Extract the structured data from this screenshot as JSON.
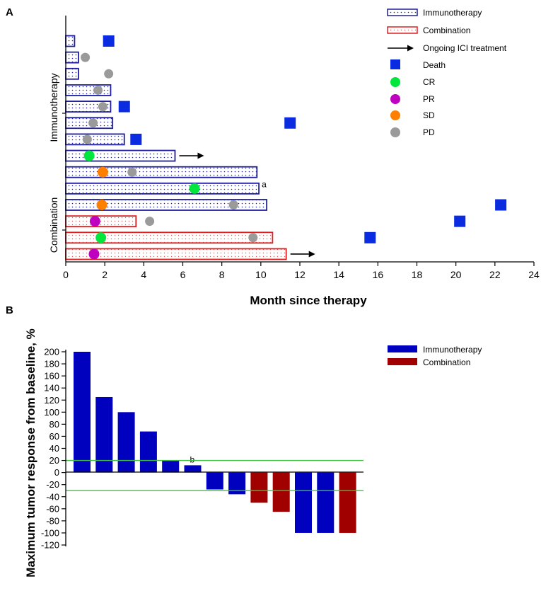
{
  "colors": {
    "immuno": "#1f1f9e",
    "combo": "#e02020",
    "immuno_bar": "#0000bf",
    "combo_bar": "#a00000",
    "death": "#0a2be0",
    "cr": "#00e63c",
    "pr": "#c000c0",
    "sd": "#ff8000",
    "pd": "#9a9a9a",
    "threshold": "#40c040"
  },
  "chart_data": [
    {
      "panel_label": "A",
      "type": "swimmer",
      "xlabel": "Month since therapy",
      "xlim": [
        0,
        24
      ],
      "xticks": [
        "0",
        "2",
        "4",
        "6",
        "8",
        "10",
        "12",
        "14",
        "16",
        "18",
        "20",
        "22",
        "24"
      ],
      "group_labels": {
        "immuno": "Immunotherapy",
        "combo": "Combination"
      },
      "legend": {
        "immuno": "Immunotherapy",
        "combo": "Combination",
        "ongoing": "Ongoing ICI treatment",
        "death": "Death",
        "cr": "CR",
        "pr": "PR",
        "sd": "SD",
        "pd": "PD"
      },
      "patients": [
        {
          "group": "immuno",
          "duration": 0.45,
          "events": [
            {
              "type": "death",
              "month": 2.2
            }
          ]
        },
        {
          "group": "immuno",
          "duration": 0.65,
          "events": [
            {
              "type": "pd",
              "month": 1.0
            }
          ]
        },
        {
          "group": "immuno",
          "duration": 0.65,
          "events": [
            {
              "type": "pd",
              "month": 2.2
            }
          ]
        },
        {
          "group": "immuno",
          "duration": 2.3,
          "events": [
            {
              "type": "pd",
              "month": 1.65
            }
          ]
        },
        {
          "group": "immuno",
          "duration": 2.3,
          "events": [
            {
              "type": "pd",
              "month": 1.9
            },
            {
              "type": "death",
              "month": 3.0
            }
          ]
        },
        {
          "group": "immuno",
          "duration": 2.4,
          "events": [
            {
              "type": "pd",
              "month": 1.4
            },
            {
              "type": "death",
              "month": 11.5
            }
          ]
        },
        {
          "group": "immuno",
          "duration": 3.0,
          "events": [
            {
              "type": "pd",
              "month": 1.1
            },
            {
              "type": "death",
              "month": 3.6
            }
          ]
        },
        {
          "group": "immuno",
          "duration": 5.6,
          "ongoing": true,
          "events": [
            {
              "type": "cr",
              "month": 1.2
            }
          ]
        },
        {
          "group": "immuno",
          "duration": 9.8,
          "events": [
            {
              "type": "sd",
              "month": 1.9
            },
            {
              "type": "pd",
              "month": 3.4
            }
          ]
        },
        {
          "group": "immuno",
          "duration": 9.9,
          "annotation": "a",
          "events": [
            {
              "type": "cr",
              "month": 6.6
            }
          ]
        },
        {
          "group": "immuno",
          "duration": 10.3,
          "events": [
            {
              "type": "sd",
              "month": 1.85
            },
            {
              "type": "pd",
              "month": 8.6
            },
            {
              "type": "death",
              "month": 22.3
            }
          ]
        },
        {
          "group": "combo",
          "duration": 3.6,
          "events": [
            {
              "type": "pr",
              "month": 1.5
            },
            {
              "type": "pd",
              "month": 4.3
            },
            {
              "type": "death",
              "month": 20.2
            }
          ]
        },
        {
          "group": "combo",
          "duration": 10.6,
          "events": [
            {
              "type": "cr",
              "month": 1.8
            },
            {
              "type": "pd",
              "month": 9.6
            },
            {
              "type": "death",
              "month": 15.6
            }
          ]
        },
        {
          "group": "combo",
          "duration": 11.3,
          "ongoing": true,
          "events": [
            {
              "type": "pr",
              "month": 1.45
            }
          ]
        }
      ]
    },
    {
      "panel_label": "B",
      "type": "bar",
      "ylabel": "Maximum tumor response from baseline, %",
      "ylim": [
        -120,
        200
      ],
      "yticks": [
        "-120",
        "-100",
        "-80",
        "-60",
        "-40",
        "-20",
        "0",
        "20",
        "40",
        "60",
        "80",
        "100",
        "120",
        "140",
        "160",
        "180",
        "200"
      ],
      "thresholds": [
        20,
        -30
      ],
      "legend": {
        "immuno": "Immunotherapy",
        "combo": "Combination"
      },
      "bars": [
        {
          "group": "immuno",
          "value": 200
        },
        {
          "group": "immuno",
          "value": 125
        },
        {
          "group": "immuno",
          "value": 100
        },
        {
          "group": "immuno",
          "value": 68
        },
        {
          "group": "immuno",
          "value": 20
        },
        {
          "group": "immuno",
          "value": 12,
          "annotation": "b"
        },
        {
          "group": "immuno",
          "value": -28
        },
        {
          "group": "immuno",
          "value": -36
        },
        {
          "group": "combo",
          "value": -50
        },
        {
          "group": "combo",
          "value": -65
        },
        {
          "group": "immuno",
          "value": -100
        },
        {
          "group": "immuno",
          "value": -100
        },
        {
          "group": "combo",
          "value": -100
        }
      ]
    }
  ]
}
